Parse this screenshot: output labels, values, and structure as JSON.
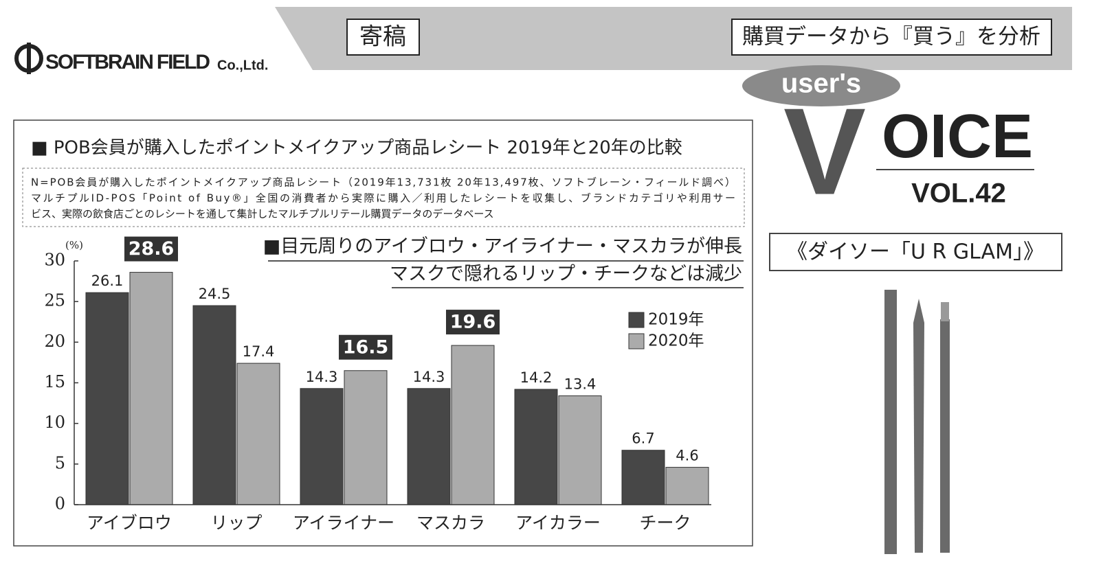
{
  "header": {
    "logo": "SOFTBRAIN FIELD",
    "logo_suffix": "Co.,Ltd.",
    "tag": "寄稿",
    "heading": "購買データから『買う』を分析",
    "column_small": "user's",
    "column_v": "V",
    "column_rest": "OICE",
    "volume": "VOL.42",
    "product": "《ダイソー「U R GLAM」》"
  },
  "chart_data": {
    "type": "bar",
    "title": "■ POB会員が購入したポイントメイクアップ商品レシート 2019年と20年の比較",
    "note": [
      "N=POB会員が購入したポイントメイクアップ商品レシート（2019年13,731枚 20年13,497枚、ソフトブレーン・フィールド調べ）",
      "マルチプルID-POS「Point of Buy®」全国の消費者から実際に購入／利用したレシートを収集し、ブランドカテゴリや利用サー",
      "ビス、実際の飲食店ごとのレシートを通して集計したマルチプルリテール購買データのデータベース"
    ],
    "subtitle": [
      "■目元周りのアイブロウ・アイライナー・マスカラが伸長",
      "マスクで隠れるリップ・チークなどは減少"
    ],
    "y_label": "(%)",
    "categories": [
      "アイブロウ",
      "リップ",
      "アイライナー",
      "マスカラ",
      "アイカラー",
      "チーク"
    ],
    "series": [
      {
        "name": "2019年",
        "color": "#474747",
        "values": [
          26.1,
          24.5,
          14.3,
          14.3,
          14.2,
          6.7
        ],
        "highlight": [
          false,
          false,
          false,
          false,
          false,
          false
        ]
      },
      {
        "name": "2020年",
        "color": "#ababab",
        "values": [
          28.6,
          17.4,
          16.5,
          19.6,
          13.4,
          4.6
        ],
        "highlight": [
          true,
          false,
          true,
          true,
          false,
          false
        ]
      }
    ],
    "ylim": [
      0,
      30
    ],
    "yticks": [
      0,
      5,
      10,
      15,
      20,
      25,
      30
    ],
    "grid": false,
    "legend": "upper right"
  }
}
